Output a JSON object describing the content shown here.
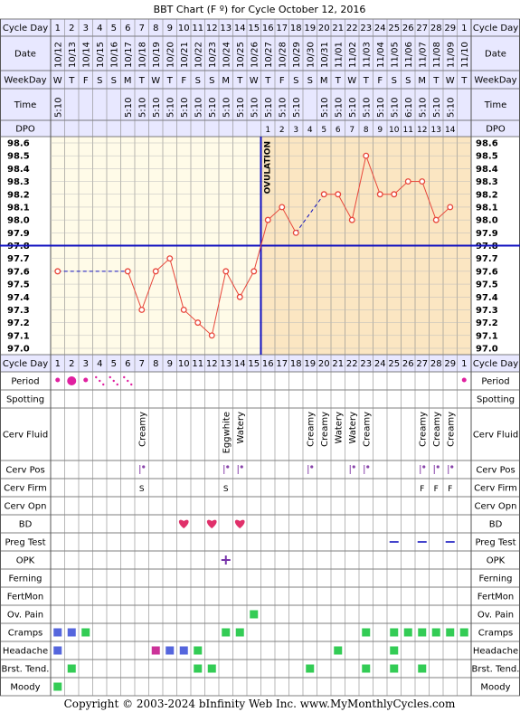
{
  "title": "BBT Chart (F º) for Cycle October 12, 2016",
  "footer": "Copyright © 2003-2024 bInfinity Web Inc.     www.MyMonthlyCycles.com",
  "labels": {
    "cycle_day": "Cycle Day",
    "date": "Date",
    "weekday": "WeekDay",
    "time": "Time",
    "dpo": "DPO",
    "ovulation": "OVULATION"
  },
  "colors": {
    "pre_ovulation_bg": "#fffbe8",
    "post_ovulation_bg": "#fbe6c2",
    "header_bg": "#e8e8ff",
    "line": "#e8463a",
    "coverline": "#1010c0",
    "period": "#e020a0",
    "heart": "#e0306a",
    "green": "#33cc55",
    "blue": "#5566dd",
    "magenta": "#cc3399"
  },
  "chart_data": {
    "type": "line",
    "cycle_days": [
      "1",
      "2",
      "3",
      "4",
      "5",
      "6",
      "7",
      "8",
      "9",
      "10",
      "11",
      "12",
      "13",
      "14",
      "15",
      "16",
      "17",
      "18",
      "19",
      "20",
      "21",
      "22",
      "23",
      "24",
      "25",
      "26",
      "27",
      "28",
      "29",
      "1"
    ],
    "dates": [
      "10/12",
      "10/13",
      "10/14",
      "10/15",
      "10/16",
      "10/17",
      "10/18",
      "10/19",
      "10/20",
      "10/21",
      "10/22",
      "10/23",
      "10/24",
      "10/25",
      "10/26",
      "10/27",
      "10/28",
      "10/29",
      "10/30",
      "10/31",
      "11/01",
      "11/02",
      "11/03",
      "11/04",
      "11/05",
      "11/06",
      "11/07",
      "11/08",
      "11/09",
      "11/10"
    ],
    "weekdays": [
      "W",
      "T",
      "F",
      "S",
      "S",
      "M",
      "T",
      "W",
      "T",
      "F",
      "S",
      "S",
      "M",
      "T",
      "W",
      "T",
      "F",
      "S",
      "S",
      "M",
      "T",
      "W",
      "T",
      "F",
      "S",
      "S",
      "M",
      "T",
      "W",
      "T"
    ],
    "times": [
      "5:10",
      "",
      "",
      "",
      "",
      "5:10",
      "5:10",
      "5:10",
      "5:10",
      "5:10",
      "5:10",
      "5:10",
      "5:10",
      "5:10",
      "5:10",
      "5:10",
      "5:10",
      "5:10",
      "",
      "5:10",
      "5:10",
      "5:10",
      "5:10",
      "5:10",
      "5:10",
      "6:10",
      "5:10",
      "5:10",
      "5:10",
      ""
    ],
    "dpo": [
      "",
      "",
      "",
      "",
      "",
      "",
      "",
      "",
      "",
      "",
      "",
      "",
      "",
      "",
      "",
      "1",
      "2",
      "3",
      "4",
      "5",
      "6",
      "7",
      "8",
      "9",
      "10",
      "11",
      "12",
      "13",
      "14",
      ""
    ],
    "temps": [
      97.6,
      null,
      null,
      null,
      null,
      97.6,
      97.3,
      97.6,
      97.7,
      97.3,
      97.2,
      97.1,
      97.6,
      97.4,
      97.6,
      98.0,
      98.1,
      97.9,
      null,
      98.2,
      98.2,
      98.0,
      98.5,
      98.2,
      98.2,
      98.3,
      98.3,
      98.0,
      98.1,
      null
    ],
    "y_ticks": [
      "98.6",
      "98.5",
      "98.4",
      "98.3",
      "98.2",
      "98.1",
      "98.0",
      "97.9",
      "97.8",
      "97.7",
      "97.6",
      "97.5",
      "97.4",
      "97.3",
      "97.2",
      "97.1",
      "97.0"
    ],
    "ylim": [
      97.0,
      98.6
    ],
    "coverline": 97.8,
    "ovulation_day_index": 14
  },
  "rows": {
    "period": {
      "label": "Period",
      "marks": [
        {
          "day": 0,
          "type": "dot-small"
        },
        {
          "day": 1,
          "type": "dot-big"
        },
        {
          "day": 2,
          "type": "dot-small"
        },
        {
          "day": 3,
          "type": "spotty"
        },
        {
          "day": 4,
          "type": "spotty"
        },
        {
          "day": 5,
          "type": "spotty"
        },
        {
          "day": 29,
          "type": "dot-small"
        }
      ]
    },
    "spotting": {
      "label": "Spotting",
      "marks": []
    },
    "cerv_fluid": {
      "label": "Cerv Fluid",
      "marks": [
        {
          "day": 6,
          "text": "Creamy"
        },
        {
          "day": 12,
          "text": "Eggwhite"
        },
        {
          "day": 13,
          "text": "Watery"
        },
        {
          "day": 18,
          "text": "Creamy"
        },
        {
          "day": 19,
          "text": "Creamy"
        },
        {
          "day": 20,
          "text": "Watery"
        },
        {
          "day": 21,
          "text": "Watery"
        },
        {
          "day": 22,
          "text": "Creamy"
        },
        {
          "day": 26,
          "text": "Creamy"
        },
        {
          "day": 27,
          "text": "Creamy"
        },
        {
          "day": 28,
          "text": "Creamy"
        }
      ]
    },
    "cerv_pos": {
      "label": "Cerv Pos",
      "marks": [
        6,
        12,
        13,
        18,
        21,
        22,
        26,
        27,
        28
      ]
    },
    "cerv_firm": {
      "label": "Cerv Firm",
      "marks": [
        {
          "day": 6,
          "text": "S"
        },
        {
          "day": 12,
          "text": "S"
        },
        {
          "day": 26,
          "text": "F"
        },
        {
          "day": 27,
          "text": "F"
        },
        {
          "day": 28,
          "text": "F"
        }
      ]
    },
    "cerv_opn": {
      "label": "Cerv Opn",
      "marks": []
    },
    "bd": {
      "label": "BD",
      "marks": [
        9,
        11,
        13
      ]
    },
    "preg_test": {
      "label": "Preg Test",
      "marks": [
        24,
        26,
        28
      ]
    },
    "opk": {
      "label": "OPK",
      "marks": [
        12
      ]
    },
    "ferning": {
      "label": "Ferning",
      "marks": []
    },
    "fertmon": {
      "label": "FertMon",
      "marks": []
    },
    "ov_pain": {
      "label": "Ov. Pain",
      "marks": [
        14
      ]
    },
    "cramps": {
      "label": "Cramps",
      "marks": [
        {
          "day": 0,
          "c": "blue"
        },
        {
          "day": 1,
          "c": "blue"
        },
        {
          "day": 2,
          "c": "green"
        },
        {
          "day": 12,
          "c": "green"
        },
        {
          "day": 13,
          "c": "green"
        },
        {
          "day": 22,
          "c": "green"
        },
        {
          "day": 24,
          "c": "green"
        },
        {
          "day": 25,
          "c": "green"
        },
        {
          "day": 26,
          "c": "green"
        },
        {
          "day": 27,
          "c": "green"
        },
        {
          "day": 28,
          "c": "green"
        },
        {
          "day": 29,
          "c": "green"
        }
      ]
    },
    "headache": {
      "label": "Headache",
      "marks": [
        {
          "day": 0,
          "c": "blue"
        },
        {
          "day": 7,
          "c": "magenta"
        },
        {
          "day": 8,
          "c": "blue"
        },
        {
          "day": 9,
          "c": "blue"
        },
        {
          "day": 10,
          "c": "green"
        },
        {
          "day": 20,
          "c": "green"
        },
        {
          "day": 24,
          "c": "green"
        }
      ]
    },
    "brst_tend": {
      "label": "Brst. Tend.",
      "marks": [
        {
          "day": 1,
          "c": "green"
        },
        {
          "day": 10,
          "c": "green"
        },
        {
          "day": 11,
          "c": "green"
        },
        {
          "day": 18,
          "c": "green"
        },
        {
          "day": 22,
          "c": "green"
        },
        {
          "day": 24,
          "c": "green"
        },
        {
          "day": 26,
          "c": "green"
        }
      ]
    },
    "moody": {
      "label": "Moody",
      "marks": [
        {
          "day": 0,
          "c": "green"
        }
      ]
    }
  }
}
